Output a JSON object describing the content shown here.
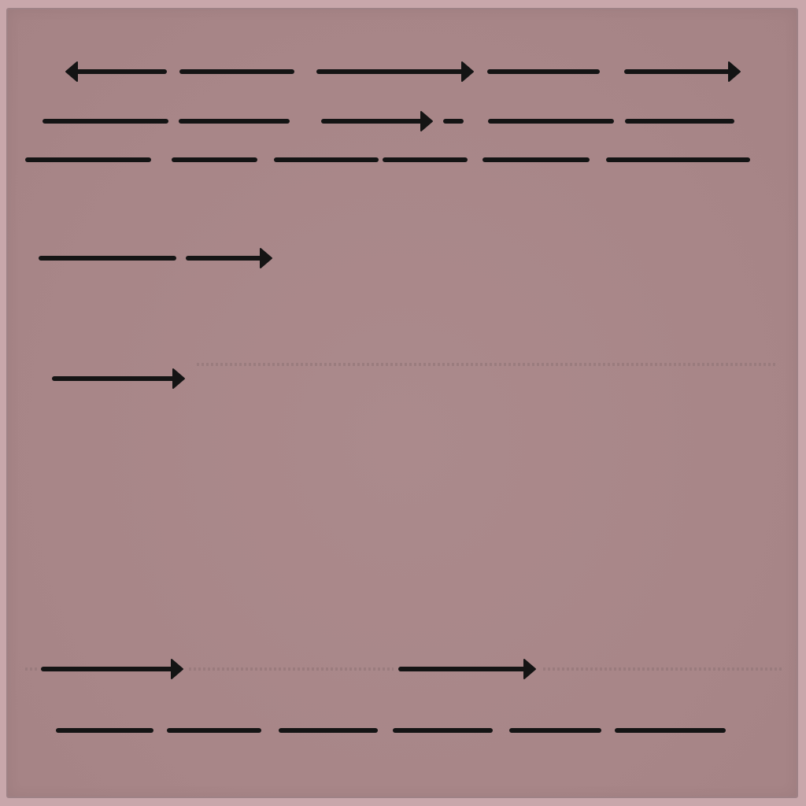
{
  "colors": {
    "background": "#c8a7ab",
    "board": "#a88688",
    "ink": "#141414",
    "dotted_guide": "#8e7375"
  },
  "rows": [
    {
      "name": "row-1",
      "segments": [
        "arrow-left",
        "dash",
        "arrow-right",
        "dash",
        "arrow-right"
      ]
    },
    {
      "name": "row-2",
      "segments": [
        "dash",
        "dash",
        "arrow-right",
        "short-dash",
        "dash",
        "dash"
      ]
    },
    {
      "name": "row-3",
      "segments": [
        "dash",
        "dash",
        "dash",
        "dash",
        "dash",
        "dash"
      ]
    },
    {
      "name": "row-4",
      "segments": [
        "dash",
        "arrow-right"
      ]
    },
    {
      "name": "row-5",
      "segments": [
        "arrow-right",
        "dotted-line"
      ]
    },
    {
      "name": "row-6",
      "segments": [
        "dotted-line",
        "arrow-right",
        "dotted-line",
        "arrow-right",
        "dotted-line"
      ]
    },
    {
      "name": "row-7",
      "segments": [
        "dash",
        "dash",
        "dash",
        "dash",
        "dash",
        "dash"
      ]
    }
  ]
}
